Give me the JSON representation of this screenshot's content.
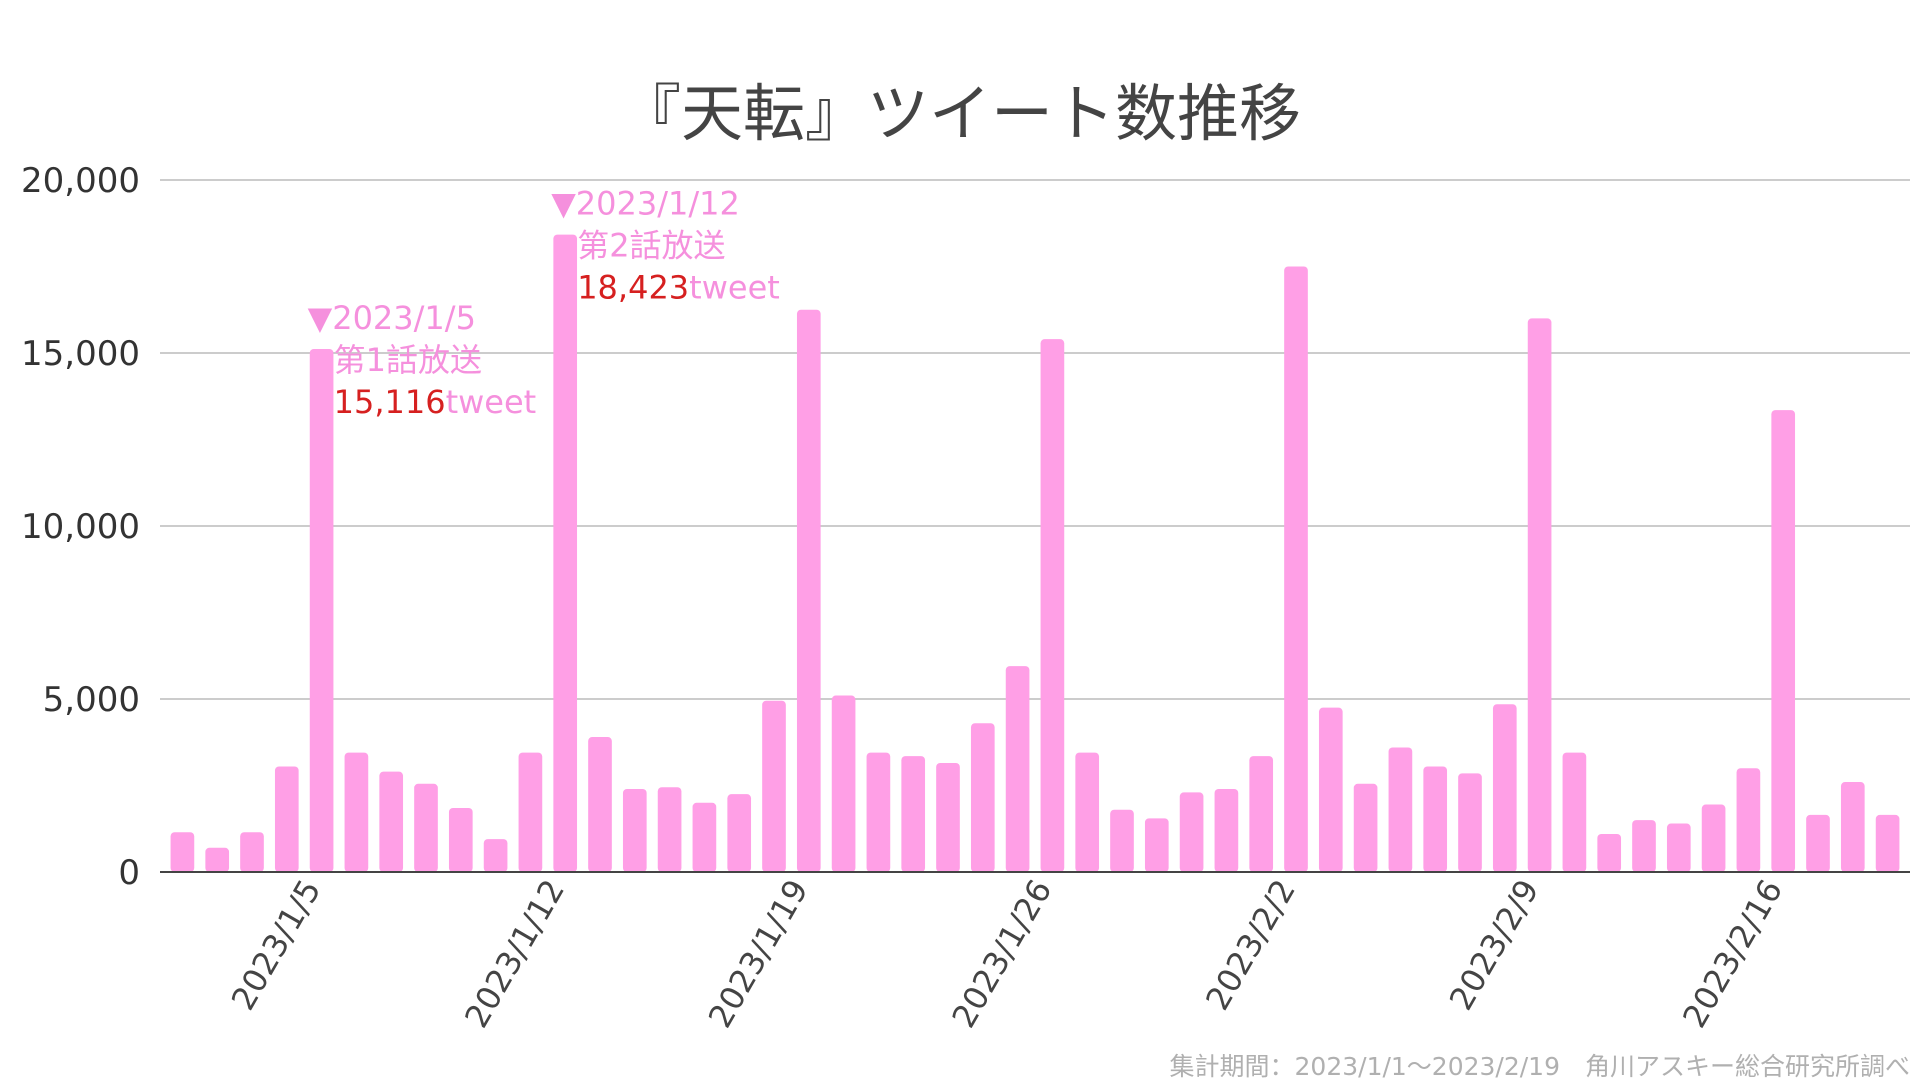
{
  "chart_data": {
    "type": "bar",
    "title": "『天転』ツイート数推移",
    "xlabel": "",
    "ylabel": "",
    "ylim": [
      0,
      20000
    ],
    "yticks": [
      "20,000",
      "15,000",
      "10,000",
      "5,000",
      "0"
    ],
    "xtick_labels": [
      "2023/1/5",
      "2023/1/12",
      "2023/1/19",
      "2023/1/26",
      "2023/2/2",
      "2023/2/9",
      "2023/2/16"
    ],
    "categories": [
      "2023/1/1",
      "2023/1/2",
      "2023/1/3",
      "2023/1/4",
      "2023/1/5",
      "2023/1/6",
      "2023/1/7",
      "2023/1/8",
      "2023/1/9",
      "2023/1/10",
      "2023/1/11",
      "2023/1/12",
      "2023/1/13",
      "2023/1/14",
      "2023/1/15",
      "2023/1/16",
      "2023/1/17",
      "2023/1/18",
      "2023/1/19",
      "2023/1/20",
      "2023/1/21",
      "2023/1/22",
      "2023/1/23",
      "2023/1/24",
      "2023/1/25",
      "2023/1/26",
      "2023/1/27",
      "2023/1/28",
      "2023/1/29",
      "2023/1/30",
      "2023/1/31",
      "2023/2/1",
      "2023/2/2",
      "2023/2/3",
      "2023/2/4",
      "2023/2/5",
      "2023/2/6",
      "2023/2/7",
      "2023/2/8",
      "2023/2/9",
      "2023/2/10",
      "2023/2/11",
      "2023/2/12",
      "2023/2/13",
      "2023/2/14",
      "2023/2/15",
      "2023/2/16",
      "2023/2/17",
      "2023/2/18",
      "2023/2/19"
    ],
    "values": [
      1150,
      700,
      1150,
      3050,
      15116,
      3450,
      2900,
      2550,
      1850,
      950,
      3450,
      18423,
      3900,
      2400,
      2450,
      2000,
      2250,
      4950,
      16250,
      5100,
      3450,
      3350,
      3150,
      4300,
      5950,
      15400,
      3450,
      1800,
      1550,
      2300,
      2400,
      3350,
      17500,
      4750,
      2550,
      3600,
      3050,
      2850,
      4850,
      16000,
      3450,
      1100,
      1500,
      1400,
      1950,
      3000,
      13350,
      1650,
      2600,
      1650
    ],
    "grid": true,
    "legend": "none",
    "bar_color": "#ff9fe6",
    "annotations": [
      {
        "marker": "▼",
        "date": "2023/1/5",
        "label": "第1話放送",
        "value": "15,116",
        "unit": "tweet"
      },
      {
        "marker": "▼",
        "date": "2023/1/12",
        "label": "第2話放送",
        "value": "18,423",
        "unit": "tweet"
      }
    ],
    "annotation_color": "#f590dd",
    "value_color": "#d62020"
  },
  "footer": "集計期間：2023/1/1〜2023/2/19　角川アスキー総合研究所調べ"
}
